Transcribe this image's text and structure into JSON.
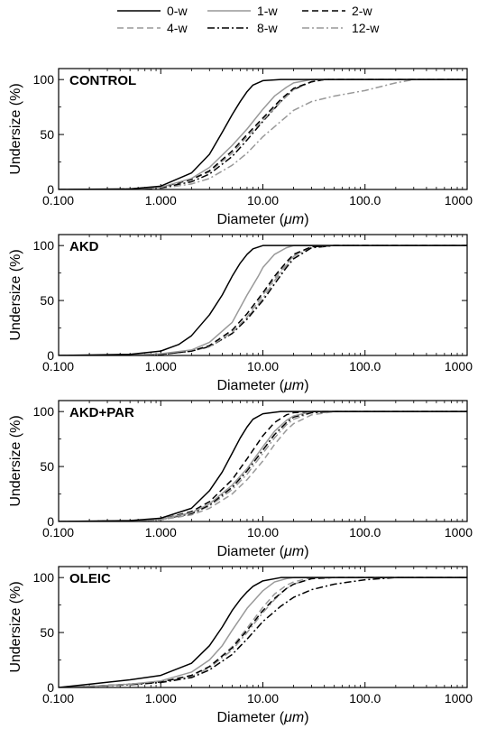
{
  "legend": [
    {
      "name": "0-w",
      "color": "#000000",
      "dash": "solid"
    },
    {
      "name": "1-w",
      "color": "#999999",
      "dash": "solid"
    },
    {
      "name": "2-w",
      "color": "#000000",
      "dash": "dash"
    },
    {
      "name": "4-w",
      "color": "#999999",
      "dash": "dash"
    },
    {
      "name": "8-w",
      "color": "#000000",
      "dash": "dashdot"
    },
    {
      "name": "12-w",
      "color": "#999999",
      "dash": "dashdot"
    }
  ],
  "chart_data": [
    {
      "type": "line",
      "panel_label": "CONTROL",
      "xlabel_text": "Diameter (",
      "xlabel_unit": "μm",
      "xlabel_close": ")",
      "ylabel": "Undersize (%)",
      "xscale": "log",
      "xlim": [
        0.1,
        1000
      ],
      "ylim": [
        0,
        110
      ],
      "xticks": [
        0.1,
        1,
        10,
        100,
        1000
      ],
      "xticklabels": [
        "0.100",
        "1.000",
        "10.00",
        "100.0",
        "1000"
      ],
      "yticks": [
        0,
        50,
        100
      ],
      "yticklabels": [
        "0",
        "50",
        "100"
      ],
      "series": [
        {
          "name": "0-w",
          "x": [
            0.1,
            0.5,
            1,
            2,
            3,
            4,
            5,
            6,
            7,
            8,
            10,
            15,
            20
          ],
          "y": [
            0,
            0.5,
            3,
            15,
            32,
            52,
            68,
            80,
            89,
            95,
            99,
            100,
            100
          ]
        },
        {
          "name": "1-w",
          "x": [
            0.1,
            0.5,
            1,
            2,
            3,
            5,
            7,
            10,
            13,
            17,
            20,
            30,
            50
          ],
          "y": [
            0,
            0.3,
            2,
            10,
            20,
            40,
            55,
            73,
            85,
            93,
            97,
            100,
            100
          ]
        },
        {
          "name": "2-w",
          "x": [
            0.1,
            0.5,
            1,
            2,
            3,
            5,
            7,
            10,
            15,
            20,
            30,
            40,
            60
          ],
          "y": [
            0,
            0.3,
            2,
            9,
            17,
            35,
            50,
            65,
            82,
            92,
            98,
            100,
            100
          ]
        },
        {
          "name": "4-w",
          "x": [
            0.1,
            0.5,
            1,
            2,
            3,
            5,
            7,
            10,
            15,
            20,
            30,
            40,
            60
          ],
          "y": [
            0,
            0.3,
            2,
            9,
            16,
            33,
            48,
            63,
            80,
            91,
            98,
            100,
            100
          ]
        },
        {
          "name": "8-w",
          "x": [
            0.1,
            0.5,
            1,
            2,
            3,
            5,
            7,
            10,
            15,
            20,
            30,
            40,
            60
          ],
          "y": [
            0,
            0.3,
            1.5,
            7,
            14,
            30,
            45,
            62,
            80,
            91,
            98,
            100,
            100
          ]
        },
        {
          "name": "12-w",
          "x": [
            0.1,
            0.5,
            1,
            2,
            3,
            5,
            7,
            10,
            15,
            20,
            30,
            50,
            100,
            200,
            300
          ],
          "y": [
            0,
            0.2,
            1,
            5,
            10,
            22,
            33,
            48,
            62,
            72,
            80,
            85,
            90,
            97,
            100
          ]
        }
      ]
    },
    {
      "type": "line",
      "panel_label": "AKD",
      "xlabel_text": "Diameter (",
      "xlabel_unit": "μm",
      "xlabel_close": ")",
      "ylabel": "Undersize (%)",
      "xscale": "log",
      "xlim": [
        0.1,
        1000
      ],
      "ylim": [
        0,
        110
      ],
      "xticks": [
        0.1,
        1,
        10,
        100,
        1000
      ],
      "xticklabels": [
        "0.100",
        "1.000",
        "10.00",
        "100.0",
        "1000"
      ],
      "yticks": [
        0,
        50,
        100
      ],
      "yticklabels": [
        "0",
        "50",
        "100"
      ],
      "series": [
        {
          "name": "0-w",
          "x": [
            0.1,
            0.5,
            1,
            1.5,
            2,
            3,
            4,
            5,
            6,
            7,
            8,
            10,
            15
          ],
          "y": [
            0,
            1,
            4,
            10,
            18,
            37,
            55,
            72,
            84,
            92,
            97,
            100,
            100
          ]
        },
        {
          "name": "1-w",
          "x": [
            0.1,
            0.5,
            1,
            2,
            3,
            5,
            7,
            9,
            10,
            13,
            17,
            20,
            30
          ],
          "y": [
            0,
            0.3,
            1.5,
            5,
            12,
            30,
            55,
            72,
            80,
            92,
            98,
            100,
            100
          ]
        },
        {
          "name": "2-w",
          "x": [
            0.1,
            0.5,
            1,
            2,
            3,
            5,
            7,
            10,
            13,
            17,
            20,
            30,
            50
          ],
          "y": [
            0,
            0.3,
            1,
            4,
            9,
            23,
            38,
            57,
            72,
            85,
            92,
            99,
            100
          ]
        },
        {
          "name": "4-w",
          "x": [
            0.1,
            0.5,
            1,
            2,
            3,
            5,
            7,
            10,
            13,
            17,
            20,
            30,
            50
          ],
          "y": [
            0,
            0.3,
            1,
            4,
            8,
            21,
            35,
            55,
            70,
            83,
            91,
            99,
            100
          ]
        },
        {
          "name": "8-w",
          "x": [
            0.1,
            0.5,
            1,
            2,
            3,
            5,
            7,
            10,
            13,
            17,
            20,
            30,
            50
          ],
          "y": [
            0,
            0.3,
            1,
            4,
            8,
            20,
            33,
            50,
            65,
            80,
            88,
            98,
            100
          ]
        },
        {
          "name": "12-w",
          "x": [
            0.1,
            0.5,
            1,
            2,
            3,
            5,
            7,
            10,
            13,
            17,
            20,
            30,
            50
          ],
          "y": [
            0,
            0.3,
            1,
            4,
            8,
            20,
            34,
            52,
            68,
            82,
            90,
            99,
            100
          ]
        }
      ]
    },
    {
      "type": "line",
      "panel_label": "AKD+PAR",
      "xlabel_text": "Diameter (",
      "xlabel_unit": "μm",
      "xlabel_close": ")",
      "ylabel": "Undersize (%)",
      "xscale": "log",
      "xlim": [
        0.1,
        1000
      ],
      "ylim": [
        0,
        110
      ],
      "xticks": [
        0.1,
        1,
        10,
        100,
        1000
      ],
      "xticklabels": [
        "0.100",
        "1.000",
        "10.00",
        "100.0",
        "1000"
      ],
      "yticks": [
        0,
        50,
        100
      ],
      "yticklabels": [
        "0",
        "50",
        "100"
      ],
      "series": [
        {
          "name": "0-w",
          "x": [
            0.1,
            0.5,
            1,
            2,
            3,
            4,
            5,
            6,
            7,
            8,
            10,
            15,
            20
          ],
          "y": [
            0,
            0.8,
            3,
            12,
            28,
            45,
            62,
            76,
            86,
            93,
            98,
            100,
            100
          ]
        },
        {
          "name": "1-w",
          "x": [
            0.1,
            0.5,
            1,
            2,
            3,
            5,
            7,
            10,
            13,
            17,
            20,
            30,
            50
          ],
          "y": [
            0,
            0.5,
            2,
            8,
            16,
            33,
            48,
            68,
            82,
            92,
            96,
            100,
            100
          ]
        },
        {
          "name": "2-w",
          "x": [
            0.1,
            0.5,
            1,
            2,
            3,
            5,
            7,
            10,
            13,
            17,
            20,
            30
          ],
          "y": [
            0,
            0.5,
            2,
            9,
            18,
            38,
            57,
            78,
            90,
            97,
            99,
            100
          ]
        },
        {
          "name": "4-w",
          "x": [
            0.1,
            0.5,
            1,
            2,
            3,
            5,
            7,
            10,
            13,
            17,
            20,
            30,
            50
          ],
          "y": [
            0,
            0.4,
            1.5,
            6,
            12,
            25,
            38,
            55,
            70,
            83,
            89,
            97,
            100
          ]
        },
        {
          "name": "8-w",
          "x": [
            0.1,
            0.5,
            1,
            2,
            3,
            5,
            7,
            10,
            13,
            17,
            20,
            30,
            50
          ],
          "y": [
            0,
            0.5,
            2,
            7,
            15,
            31,
            46,
            65,
            79,
            90,
            95,
            99,
            100
          ]
        },
        {
          "name": "12-w",
          "x": [
            0.1,
            0.5,
            1,
            2,
            3,
            5,
            7,
            10,
            13,
            17,
            20,
            30,
            50
          ],
          "y": [
            0,
            0.5,
            2,
            7,
            14,
            29,
            43,
            62,
            76,
            88,
            93,
            99,
            100
          ]
        }
      ]
    },
    {
      "type": "line",
      "panel_label": "OLEIC",
      "xlabel_text": "Diameter (",
      "xlabel_unit": "μm",
      "xlabel_close": ")",
      "ylabel": "Undersize (%)",
      "xscale": "log",
      "xlim": [
        0.1,
        1000
      ],
      "ylim": [
        0,
        110
      ],
      "xticks": [
        0.1,
        1,
        10,
        100,
        1000
      ],
      "xticklabels": [
        "0.100",
        "1.000",
        "10.00",
        "100.0",
        "1000"
      ],
      "yticks": [
        0,
        50,
        100
      ],
      "yticklabels": [
        "0",
        "50",
        "100"
      ],
      "series": [
        {
          "name": "0-w",
          "x": [
            0.1,
            0.2,
            0.5,
            1,
            2,
            3,
            4,
            5,
            6,
            7,
            8,
            10,
            15,
            20
          ],
          "y": [
            0,
            3,
            7,
            11,
            22,
            38,
            55,
            70,
            80,
            87,
            92,
            97,
            100,
            100
          ]
        },
        {
          "name": "1-w",
          "x": [
            0.1,
            0.2,
            0.5,
            1,
            2,
            3,
            4,
            5,
            7,
            10,
            13,
            17,
            20,
            30
          ],
          "y": [
            0,
            1,
            3,
            6,
            14,
            25,
            38,
            52,
            72,
            88,
            96,
            99,
            100,
            100
          ]
        },
        {
          "name": "2-w",
          "x": [
            0.1,
            0.2,
            0.5,
            1,
            2,
            3,
            5,
            7,
            10,
            13,
            17,
            20,
            30,
            50
          ],
          "y": [
            0,
            1,
            3,
            5,
            11,
            19,
            36,
            52,
            70,
            81,
            90,
            94,
            99,
            100
          ]
        },
        {
          "name": "4-w",
          "x": [
            0.1,
            0.2,
            0.5,
            1,
            2,
            3,
            5,
            7,
            10,
            13,
            17,
            20,
            30,
            50
          ],
          "y": [
            0,
            1,
            3,
            5,
            11,
            19,
            37,
            54,
            73,
            85,
            93,
            96,
            100,
            100
          ]
        },
        {
          "name": "8-w",
          "x": [
            0.1,
            0.2,
            0.5,
            1,
            2,
            3,
            5,
            7,
            10,
            15,
            20,
            30,
            50,
            100,
            200,
            300
          ],
          "y": [
            0,
            1,
            2.5,
            4.5,
            9,
            16,
            30,
            44,
            60,
            74,
            82,
            89,
            94,
            98,
            100,
            100
          ]
        },
        {
          "name": "12-w",
          "x": [
            0.1,
            0.2,
            0.5,
            1,
            2,
            3,
            5,
            7,
            10,
            13,
            17,
            20,
            30,
            50
          ],
          "y": [
            0,
            1,
            3,
            5,
            10,
            18,
            34,
            50,
            68,
            80,
            90,
            94,
            99,
            100
          ]
        }
      ]
    }
  ]
}
